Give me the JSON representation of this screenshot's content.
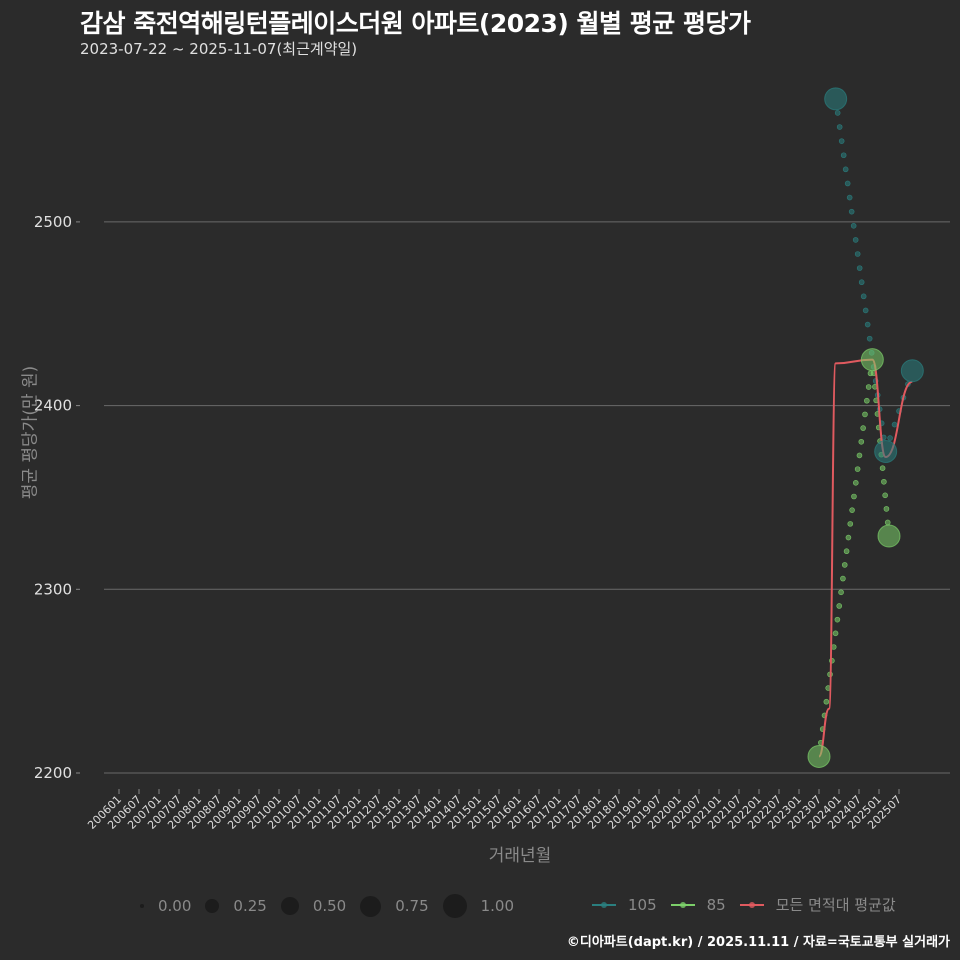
{
  "header": {
    "title": "감삼 죽전역해링턴플레이스더원 아파트(2023) 월별 평균 평당가",
    "subtitle": "2023-07-22 ~ 2025-11-07(최근계약일)"
  },
  "footer": {
    "credit": "©디아파트(dapt.kr) / 2025.11.11 / 자료=국토교통부 실거래가"
  },
  "legend": {
    "size": [
      {
        "label": "0.00",
        "size": 4
      },
      {
        "label": "0.25",
        "size": 14
      },
      {
        "label": "0.50",
        "size": 18
      },
      {
        "label": "0.75",
        "size": 21
      },
      {
        "label": "1.00",
        "size": 24
      }
    ],
    "color": [
      {
        "label": "105",
        "color": "#2a7f7f"
      },
      {
        "label": "85",
        "color": "#7ccf6a"
      },
      {
        "label": "모든 면적대 평균값",
        "color": "#e05a5f"
      }
    ]
  },
  "chart_data": {
    "type": "scatter",
    "title": "감삼 죽전역해링턴플레이스더원 아파트(2023) 월별 평균 평당가",
    "subtitle": "2023-07-22 ~ 2025-11-07(최근계약일)",
    "xlabel": "거래년월",
    "ylabel": "평균 평당가(만 원)",
    "ylim": [
      2180,
      2590
    ],
    "yticks": [
      2200,
      2300,
      2400,
      2500
    ],
    "grid": true,
    "legend_position": "bottom",
    "xticks": [
      "200601",
      "200607",
      "200701",
      "200707",
      "200801",
      "200807",
      "200901",
      "200907",
      "201001",
      "201007",
      "201101",
      "201107",
      "201201",
      "201207",
      "201301",
      "201307",
      "201401",
      "201407",
      "201501",
      "201507",
      "201601",
      "201607",
      "201701",
      "201707",
      "201801",
      "201807",
      "201901",
      "201907",
      "202001",
      "202007",
      "202101",
      "202107",
      "202201",
      "202207",
      "202301",
      "202307",
      "202401",
      "202407",
      "202501",
      "202507"
    ],
    "series": [
      {
        "name": "105",
        "color": "#2a7f7f",
        "points": [
          {
            "x": "202312",
            "y": 2567,
            "size": 1.0
          },
          {
            "x": "202503",
            "y": 2375,
            "size": 1.0
          },
          {
            "x": "202511",
            "y": 2419,
            "size": 1.0
          }
        ]
      },
      {
        "name": "85",
        "color": "#7ccf6a",
        "points": [
          {
            "x": "202307",
            "y": 2209,
            "size": 1.0
          },
          {
            "x": "202411",
            "y": 2425,
            "size": 1.0
          },
          {
            "x": "202504",
            "y": 2329,
            "size": 1.0
          }
        ]
      },
      {
        "name": "모든 면적대 평균값",
        "type": "line",
        "color": "#e05a5f",
        "points": [
          {
            "x": "202307",
            "y": 2209
          },
          {
            "x": "202310",
            "y": 2235
          },
          {
            "x": "202312",
            "y": 2423
          },
          {
            "x": "202411",
            "y": 2425
          },
          {
            "x": "202503",
            "y": 2372
          },
          {
            "x": "202511",
            "y": 2413
          }
        ]
      }
    ]
  }
}
